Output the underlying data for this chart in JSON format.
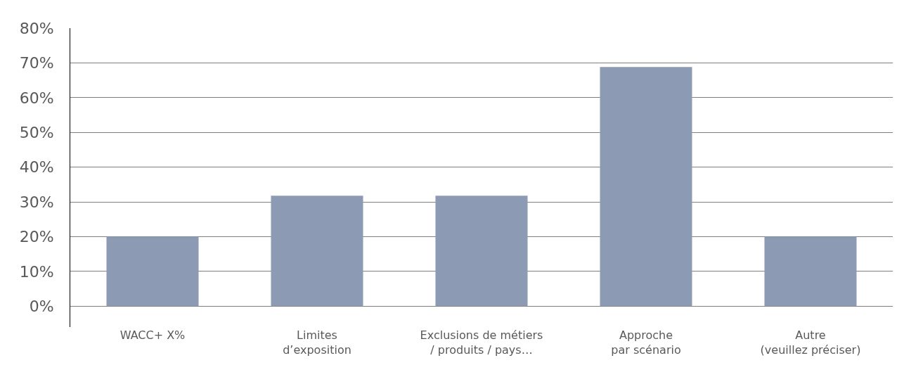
{
  "chart_data": {
    "type": "bar",
    "categories": [
      "WACC+ X%",
      "Limites\nd’exposition",
      "Exclusions de métiers\n/ produits / pays…",
      "Approche\npar scénario",
      "Autre\n(veuillez préciser)"
    ],
    "values": [
      20,
      31.8,
      31.8,
      68.8,
      20
    ],
    "color": "#8c9bb3",
    "ylim": [
      -6,
      80
    ],
    "yticks": [
      {
        "value": 0,
        "label": "0%"
      },
      {
        "value": 10,
        "label": "10%"
      },
      {
        "value": 20,
        "label": "20%"
      },
      {
        "value": 30,
        "label": "30%"
      },
      {
        "value": 40,
        "label": "40%"
      },
      {
        "value": 50,
        "label": "50%"
      },
      {
        "value": 60,
        "label": "60%"
      },
      {
        "value": 70,
        "label": "70%"
      },
      {
        "value": 80,
        "label": "80%"
      }
    ],
    "grid": "y"
  }
}
